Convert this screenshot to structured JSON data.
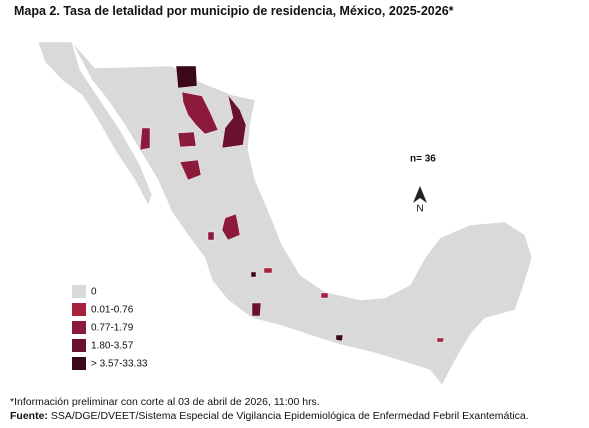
{
  "title": "Mapa 2. Tasa de letalidad por municipio de residencia, México, 2025-2026*",
  "count_label": "n= 36",
  "north_label": "N",
  "legend": [
    {
      "label": "0",
      "color": "#d9d9d9"
    },
    {
      "label": "0.01-0.76",
      "color": "#a8213f"
    },
    {
      "label": "0.77-1.79",
      "color": "#8c1a3b"
    },
    {
      "label": "1.80-3.57",
      "color": "#6a1030"
    },
    {
      "label": "> 3.57-33.33",
      "color": "#3a0818"
    }
  ],
  "footnote": "*Información preliminar con corte al 03 de abril de 2026, 11:00 hrs.",
  "source": {
    "prefix": "Fuente:",
    "text": "SSA/DGE/DVEET/Sistema Especial de Vigilancia Epidemiológica de Enfermedad Febril Exantemática."
  }
}
